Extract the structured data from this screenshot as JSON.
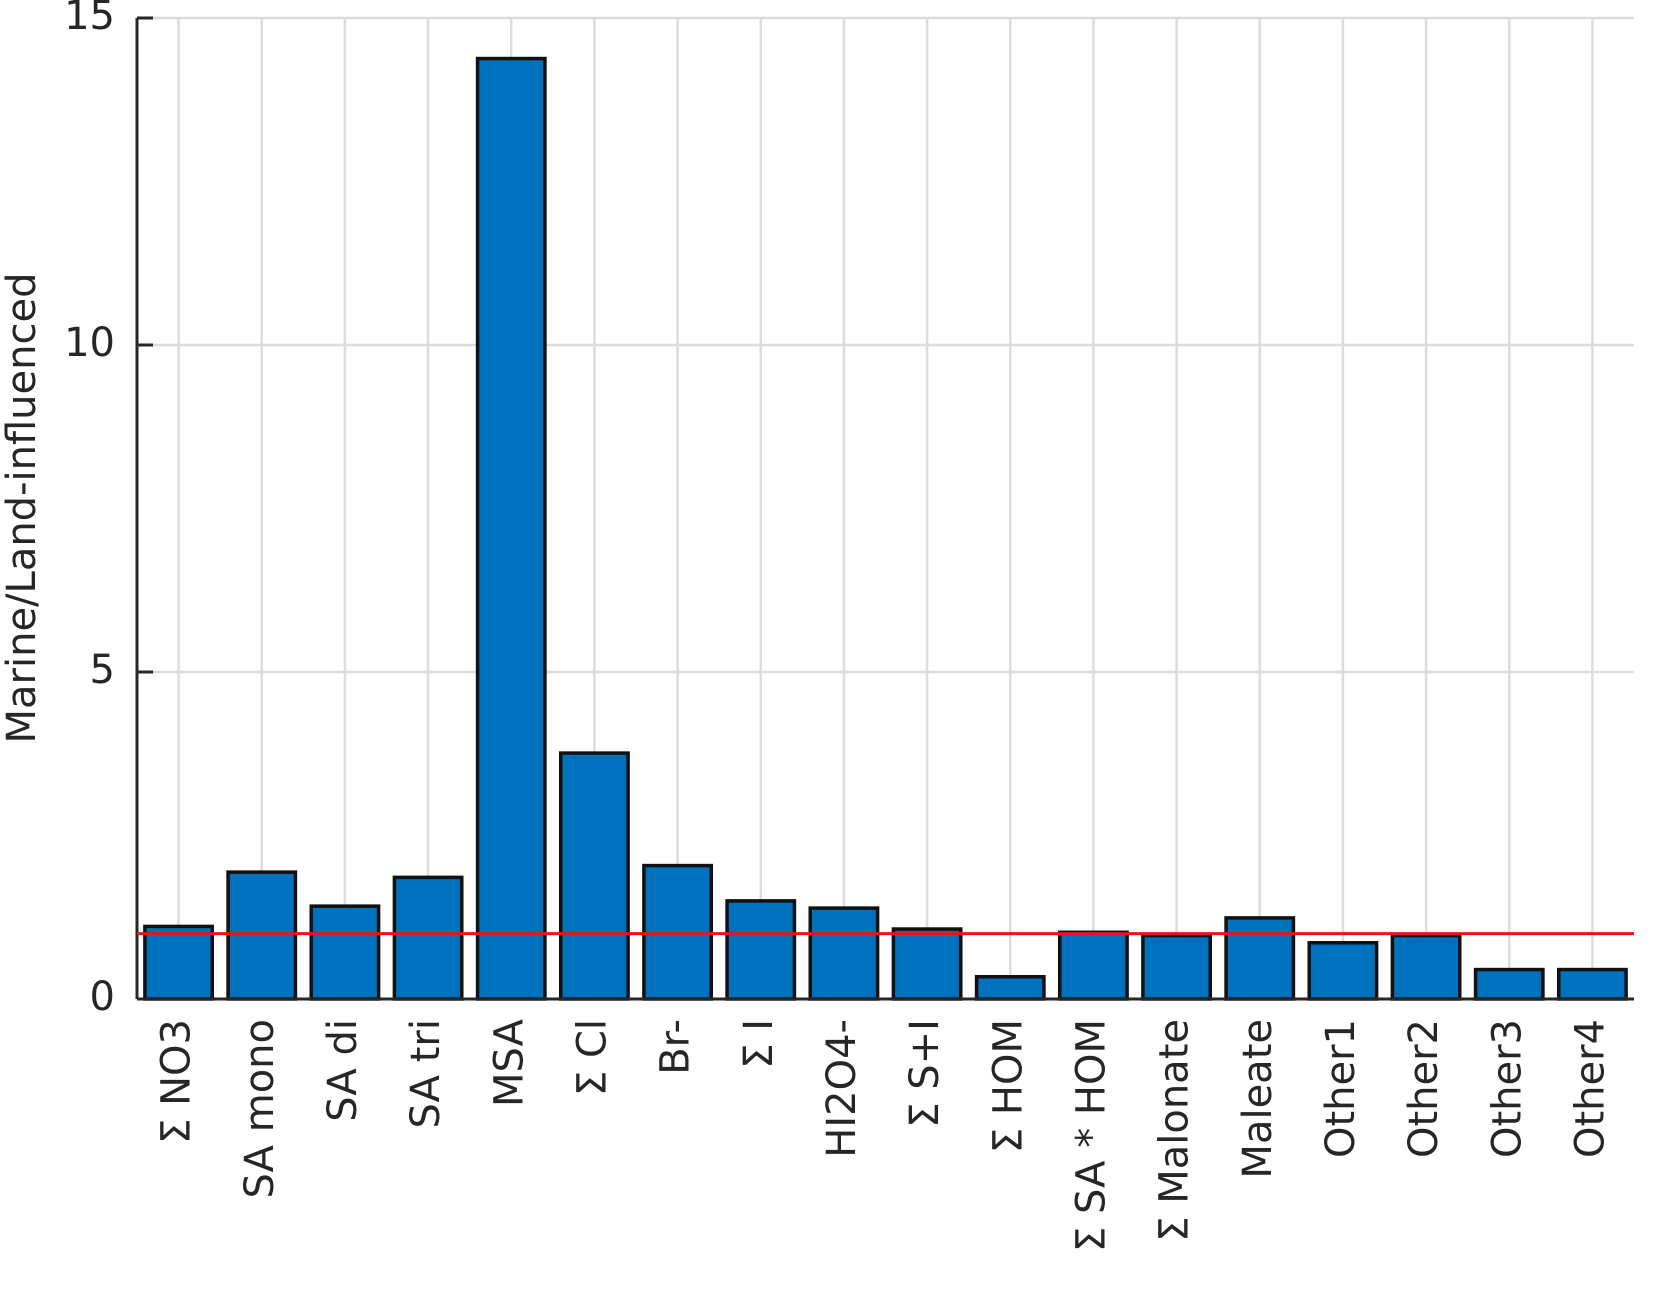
{
  "chart_data": {
    "type": "bar",
    "y_label": "Marine/Land-influenced",
    "categories": [
      "Σ NO3",
      "SA mono",
      "SA di",
      "SA tri",
      "MSA",
      "Σ Cl",
      "Br-",
      "Σ I",
      "HI2O4-",
      "Σ S+I",
      "Σ HOM",
      "Σ SA * HOM",
      "Σ Malonate",
      "Maleate",
      "Other1",
      "Other2",
      "Other3",
      "Other4"
    ],
    "values": [
      1.11,
      1.94,
      1.42,
      1.86,
      14.38,
      3.76,
      2.04,
      1.5,
      1.39,
      1.07,
      0.34,
      1.02,
      0.97,
      1.24,
      0.86,
      0.97,
      0.45,
      0.45
    ],
    "color": "#0072bd",
    "reference_line": 1,
    "reference_color": "#e8141c",
    "ylim": [
      0,
      15
    ],
    "yticks": [
      0,
      5,
      10,
      15
    ],
    "grid": true
  }
}
